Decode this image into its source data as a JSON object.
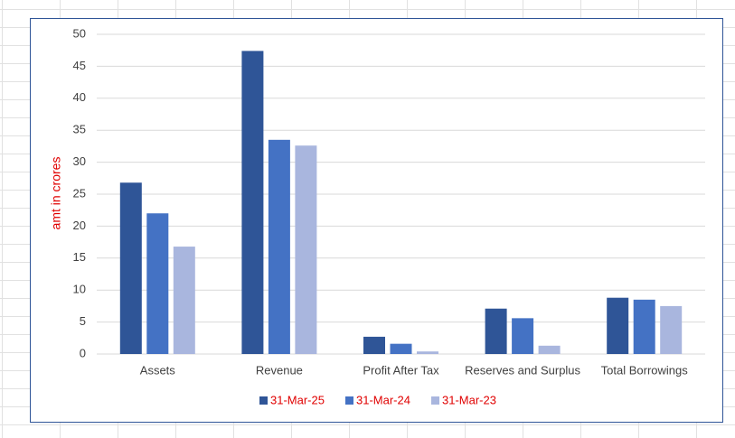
{
  "chart_data": {
    "type": "bar",
    "y_label": "amt in crores",
    "categories": [
      "Assets",
      "Revenue",
      "Profit After Tax",
      "Reserves and Surplus",
      "Total Borrowings"
    ],
    "series": [
      {
        "name": "31-Mar-25",
        "color": "#2f5597",
        "values": [
          26.8,
          47.4,
          2.7,
          7.1,
          8.8
        ]
      },
      {
        "name": "31-Mar-24",
        "color": "#4472c4",
        "values": [
          22,
          33.5,
          1.6,
          5.6,
          8.5
        ]
      },
      {
        "name": "31-Mar-23",
        "color": "#a9b6de",
        "values": [
          16.8,
          32.6,
          0.4,
          1.3,
          7.5
        ]
      }
    ],
    "ylim": [
      0,
      50
    ],
    "yticks": [
      0,
      5,
      10,
      15,
      20,
      25,
      30,
      35,
      40,
      45,
      50
    ],
    "grid": true,
    "legend": "bottom"
  }
}
